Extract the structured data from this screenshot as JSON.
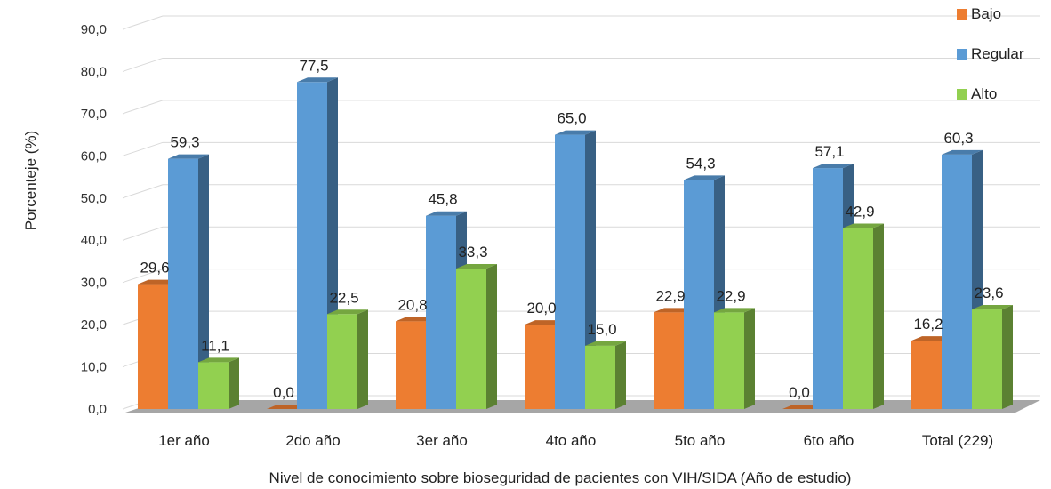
{
  "chart_data": {
    "type": "bar",
    "categories": [
      "1er año",
      "2do año",
      "3er año",
      "4to año",
      "5to año",
      "6to año",
      "Total (229)"
    ],
    "series": [
      {
        "name": "Bajo",
        "values": [
          29.6,
          0.0,
          20.8,
          20.0,
          22.9,
          0.0,
          16.2
        ],
        "color": "#ED7D31"
      },
      {
        "name": "Regular",
        "values": [
          59.3,
          77.5,
          45.8,
          65.0,
          54.3,
          57.1,
          60.3
        ],
        "color": "#5B9BD5"
      },
      {
        "name": "Alto",
        "values": [
          11.1,
          22.5,
          33.3,
          15.0,
          22.9,
          42.9,
          23.6
        ],
        "color": "#92D050"
      }
    ],
    "ylim": [
      0,
      90
    ],
    "yticks": [
      "0,0",
      "10,0",
      "20,0",
      "30,0",
      "40,0",
      "50,0",
      "60,0",
      "70,0",
      "80,0",
      "90,0"
    ],
    "data_labels": [
      [
        "29,6",
        "0,0",
        "20,8",
        "20,0",
        "22,9",
        "0,0",
        "16,2"
      ],
      [
        "59,3",
        "77,5",
        "45,8",
        "65,0",
        "54,3",
        "57,1",
        "60,3"
      ],
      [
        "11,1",
        "22,5",
        "33,3",
        "15,0",
        "22,9",
        "42,9",
        "23,6"
      ]
    ],
    "ylabel": "Porcenteje (%)",
    "xlabel": "Nivel de conocimiento sobre bioseguridad de pacientes con VIH/SIDA (Año de estudio)",
    "legend_position": "top-right",
    "grid": true,
    "style": "3d-clustered-column"
  }
}
